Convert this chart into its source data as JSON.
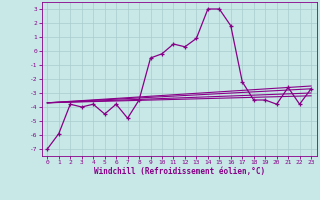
{
  "title": "",
  "xlabel": "Windchill (Refroidissement éolien,°C)",
  "ylabel": "",
  "bg_color": "#c8e8e8",
  "grid_color": "#aacccc",
  "line_color": "#880088",
  "xlim": [
    -0.5,
    23.5
  ],
  "ylim": [
    -7.5,
    3.5
  ],
  "yticks": [
    -7,
    -6,
    -5,
    -4,
    -3,
    -2,
    -1,
    0,
    1,
    2,
    3
  ],
  "xticks": [
    0,
    1,
    2,
    3,
    4,
    5,
    6,
    7,
    8,
    9,
    10,
    11,
    12,
    13,
    14,
    15,
    16,
    17,
    18,
    19,
    20,
    21,
    22,
    23
  ],
  "series": [
    [
      0,
      -7.0
    ],
    [
      1,
      -5.9
    ],
    [
      2,
      -3.8
    ],
    [
      3,
      -4.0
    ],
    [
      4,
      -3.8
    ],
    [
      5,
      -4.5
    ],
    [
      6,
      -3.8
    ],
    [
      7,
      -4.8
    ],
    [
      8,
      -3.5
    ],
    [
      9,
      -0.5
    ],
    [
      10,
      -0.2
    ],
    [
      11,
      0.5
    ],
    [
      12,
      0.3
    ],
    [
      13,
      0.9
    ],
    [
      14,
      3.0
    ],
    [
      15,
      3.0
    ],
    [
      16,
      1.8
    ],
    [
      17,
      -2.2
    ],
    [
      18,
      -3.5
    ],
    [
      19,
      -3.5
    ],
    [
      20,
      -3.8
    ],
    [
      21,
      -2.6
    ],
    [
      22,
      -3.8
    ],
    [
      23,
      -2.7
    ]
  ],
  "linear_series": [
    [
      [
        0,
        -3.7
      ],
      [
        23,
        -2.5
      ]
    ],
    [
      [
        0,
        -3.7
      ],
      [
        23,
        -2.7
      ]
    ],
    [
      [
        0,
        -3.7
      ],
      [
        23,
        -3.0
      ]
    ],
    [
      [
        0,
        -3.7
      ],
      [
        23,
        -3.2
      ]
    ]
  ]
}
